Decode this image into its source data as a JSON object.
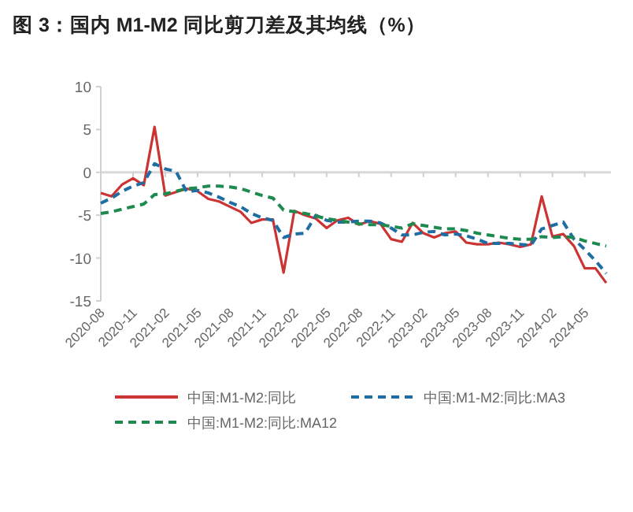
{
  "chart_data": {
    "type": "line",
    "title": "图 3：国内 M1-M2 同比剪刀差及其均线（%）",
    "categories": [
      "2020-08",
      null,
      null,
      "2020-11",
      null,
      null,
      "2021-02",
      null,
      null,
      "2021-05",
      null,
      null,
      "2021-08",
      null,
      null,
      "2021-11",
      null,
      null,
      "2022-02",
      null,
      null,
      "2022-05",
      null,
      null,
      "2022-08",
      null,
      null,
      "2022-11",
      null,
      null,
      "2023-02",
      null,
      null,
      "2023-05",
      null,
      null,
      "2023-08",
      null,
      null,
      "2023-11",
      null,
      null,
      "2024-02",
      null,
      null,
      "2024-05",
      null,
      null
    ],
    "series": [
      {
        "name": "中国:M1-M2:同比",
        "color": "#cc3333",
        "line_style": "solid",
        "values": [
          -2.4,
          -2.8,
          -1.4,
          -0.7,
          -1.5,
          5.3,
          -2.7,
          -2.3,
          -1.9,
          -2.2,
          -3.1,
          -3.4,
          -4.0,
          -4.6,
          -5.9,
          -5.5,
          -5.5,
          -11.7,
          -4.5,
          -5.0,
          -5.4,
          -6.5,
          -5.6,
          -5.3,
          -6.1,
          -5.7,
          -6.0,
          -7.8,
          -8.1,
          -5.9,
          -7.1,
          -7.6,
          -7.1,
          -6.9,
          -8.2,
          -8.4,
          -8.4,
          -8.2,
          -8.4,
          -8.7,
          -8.4,
          -2.8,
          -7.5,
          -7.2,
          -8.6,
          -11.2,
          -11.2,
          -12.9
        ]
      },
      {
        "name": "中国:M1-M2:同比:MA3",
        "color": "#1f6ea3",
        "line_style": "dashed",
        "values": [
          -3.6,
          -3.0,
          -2.2,
          -1.6,
          -1.2,
          1.0,
          0.4,
          0.1,
          -2.3,
          -2.1,
          -2.4,
          -2.9,
          -3.5,
          -4.0,
          -4.8,
          -5.3,
          -5.6,
          -7.6,
          -7.2,
          -7.1,
          -5.0,
          -5.6,
          -5.8,
          -5.8,
          -5.7,
          -5.7,
          -5.9,
          -6.5,
          -7.3,
          -7.3,
          -7.0,
          -6.9,
          -7.3,
          -7.2,
          -7.4,
          -7.8,
          -8.3,
          -8.3,
          -8.3,
          -8.4,
          -8.5,
          -6.6,
          -6.2,
          -5.8,
          -7.8,
          -9.0,
          -10.3,
          -11.8
        ]
      },
      {
        "name": "中国:M1-M2:同比:MA12",
        "color": "#1e8a4f",
        "line_style": "dashed",
        "values": [
          -4.8,
          -4.6,
          -4.3,
          -4.0,
          -3.7,
          -2.6,
          -2.5,
          -2.2,
          -1.9,
          -1.8,
          -1.6,
          -1.6,
          -1.7,
          -1.9,
          -2.3,
          -2.7,
          -3.0,
          -4.4,
          -4.6,
          -4.8,
          -5.1,
          -5.4,
          -5.6,
          -5.8,
          -6.0,
          -6.1,
          -6.1,
          -6.3,
          -6.5,
          -6.0,
          -6.2,
          -6.4,
          -6.6,
          -6.6,
          -6.8,
          -7.1,
          -7.3,
          -7.5,
          -7.7,
          -7.8,
          -7.8,
          -7.5,
          -7.6,
          -7.5,
          -7.6,
          -8.0,
          -8.3,
          -8.6
        ]
      }
    ],
    "ylim": [
      -15,
      10
    ],
    "yticks": [
      10,
      5,
      0,
      -5,
      -10,
      -15
    ],
    "legend": "bottom"
  }
}
